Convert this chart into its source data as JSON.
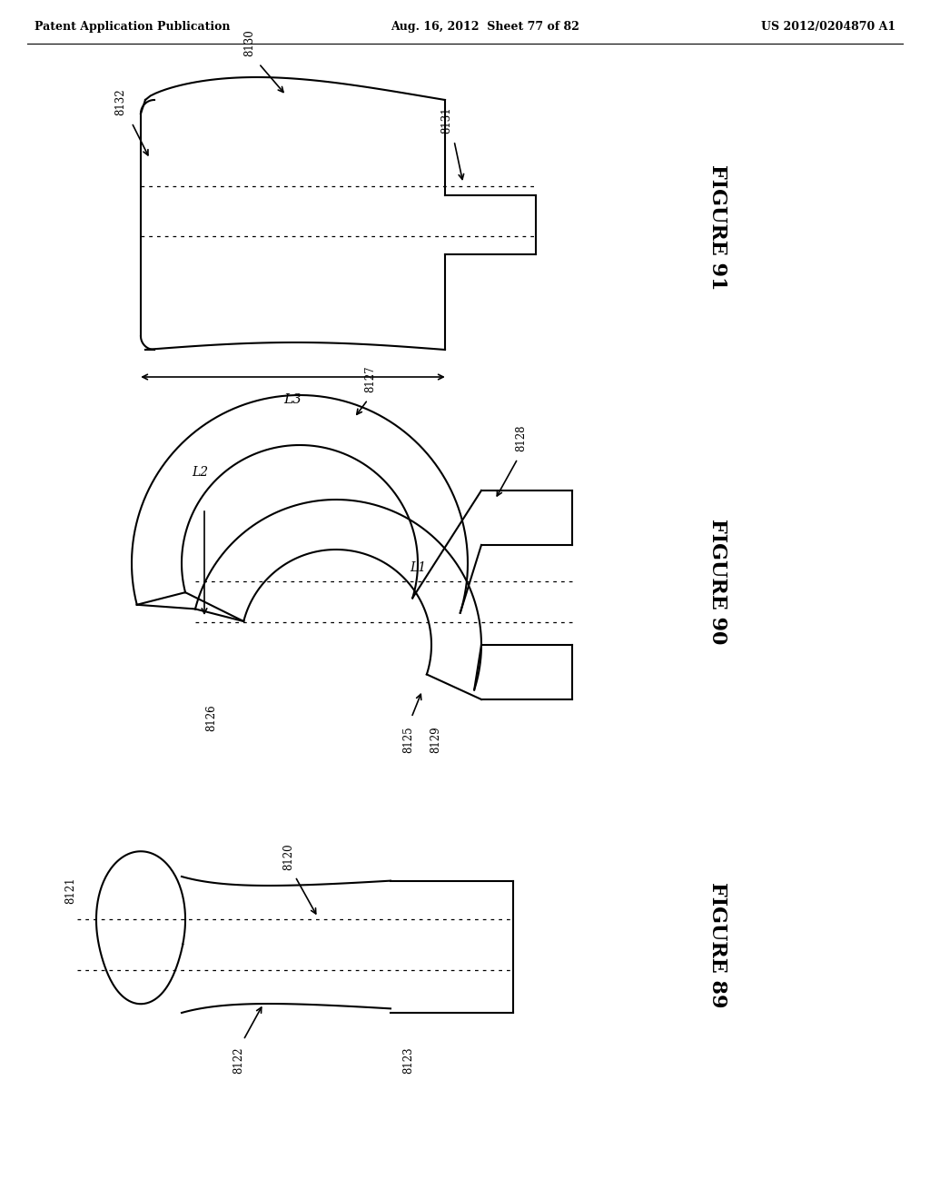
{
  "background_color": "#ffffff",
  "header_left": "Patent Application Publication",
  "header_center": "Aug. 16, 2012  Sheet 77 of 82",
  "header_right": "US 2012/0204870 A1",
  "line_color": "#000000",
  "line_width": 1.5,
  "fig91_label": "FIGURE 91",
  "fig90_label": "FIGURE 90",
  "fig89_label": "FIGURE 89"
}
